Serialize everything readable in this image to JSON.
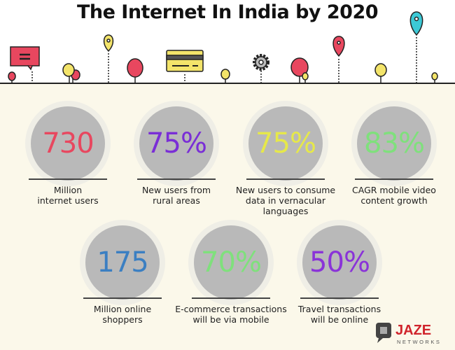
{
  "title": "The Internet In India by 2020",
  "stats": [
    {
      "value": "730",
      "label": "Million internet users",
      "lines": [
        "Million",
        "internet users"
      ],
      "color": "#e8475f"
    },
    {
      "value": "75%",
      "label": "New users from rural areas",
      "lines": [
        "New users from",
        "rural areas"
      ],
      "color": "#7a2ed6"
    },
    {
      "value": "75%",
      "label": "New users to consume data in vernacular languages",
      "lines": [
        "New users to consume",
        "data in vernacular",
        "languages"
      ],
      "color": "#e6e84a"
    },
    {
      "value": "83%",
      "label": "CAGR mobile video content growth",
      "lines": [
        "CAGR mobile video",
        "content growth"
      ],
      "color": "#7fe07c"
    },
    {
      "value": "175",
      "label": "Million online shoppers",
      "lines": [
        "Million online",
        "shoppers"
      ],
      "color": "#3b7fc2"
    },
    {
      "value": "70%",
      "label": "E-commerce transactions will be via mobile",
      "lines": [
        "E-commerce transactions",
        "will be via mobile"
      ],
      "color": "#7fe07c"
    },
    {
      "value": "50%",
      "label": "Travel transactions will be online",
      "lines": [
        "Travel transactions",
        "will be online"
      ],
      "color": "#8a33d8"
    }
  ],
  "logo": {
    "name": "JAZE",
    "sub": "NETWORKS"
  }
}
